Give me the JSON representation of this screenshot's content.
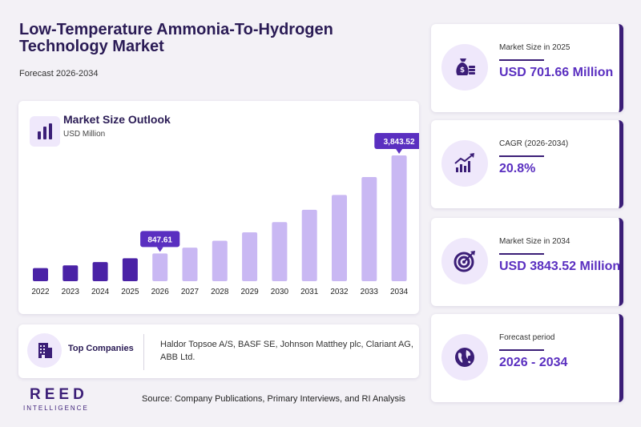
{
  "header": {
    "title": "Low-Temperature Ammonia-To-Hydrogen Technology Market",
    "subtitle": "Forecast 2026-2034"
  },
  "chart_panel": {
    "title": "Market Size Outlook",
    "unit": "USD Million"
  },
  "chart_data": {
    "type": "bar",
    "categories": [
      "2022",
      "2023",
      "2024",
      "2025",
      "2026",
      "2027",
      "2028",
      "2029",
      "2030",
      "2031",
      "2032",
      "2033",
      "2034"
    ],
    "values": [
      400,
      483,
      584,
      701.66,
      847.61,
      1024,
      1237,
      1494,
      1805,
      2181,
      2634,
      3182,
      3843.52
    ],
    "historical_count": 4,
    "data_labels": [
      {
        "index": 4,
        "text": "847.61"
      },
      {
        "index": 12,
        "text": "3,843.52"
      }
    ],
    "grid": false,
    "colors": {
      "historical": "#4a22a6",
      "forecast": "#c9b8f3",
      "label_bg": "#5a2fc0"
    }
  },
  "kpis": [
    {
      "label": "Market Size in 2025",
      "value": "USD 701.66 Million",
      "icon": "money-bag-icon"
    },
    {
      "label": "CAGR (2026-2034)",
      "value": "20.8%",
      "icon": "growth-chart-icon"
    },
    {
      "label": "Market Size in 2034",
      "value": "USD 3843.52 Million",
      "icon": "target-icon"
    },
    {
      "label": "Forecast period",
      "value": "2026 - 2034",
      "icon": "globe-icon"
    }
  ],
  "companies": {
    "label": "Top Companies",
    "text": "Haldor Topsoe A/S, BASF SE, Johnson Matthey plc, Clariant AG, ABB Ltd."
  },
  "footer": {
    "logo": "REED",
    "logo_sub": "INTELLIGENCE",
    "source": "Source: Company Publications, Primary Interviews, and RI Analysis"
  },
  "colors": {
    "accent": "#3b1e77",
    "value": "#5a2fc0",
    "icon_bg": "#efe8fb"
  }
}
